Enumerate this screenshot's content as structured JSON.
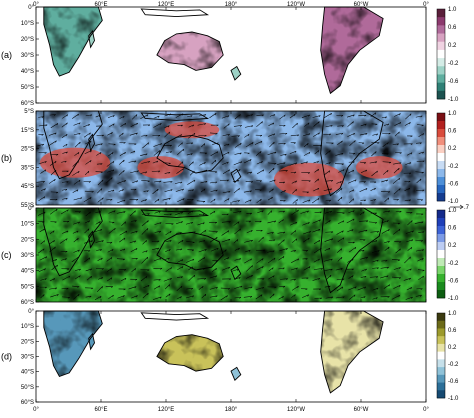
{
  "lon_labels": [
    "0°",
    "60°E",
    "120°E",
    "180°",
    "120°W",
    "60°W",
    "0°"
  ],
  "colors": {
    "brown_to_teal": [
      "#5a1f3a",
      "#8c3a6e",
      "#b06a9a",
      "#d7a2c1",
      "#f0d3e2",
      "#ffffff",
      "#d4ece6",
      "#9dd2c6",
      "#5fae9f",
      "#2f8076",
      "#1c5250"
    ],
    "red_to_blue": [
      "#7a0f14",
      "#b2201f",
      "#d94b3c",
      "#f18f7c",
      "#fbd0c3",
      "#ffffff",
      "#c8dcf4",
      "#8cb8ea",
      "#4d8fd8",
      "#2666bf",
      "#143c8f"
    ],
    "blue_to_green": [
      "#142a8a",
      "#1f3fb8",
      "#3d63d6",
      "#7c9be6",
      "#bdcdf3",
      "#ffffff",
      "#bfeab5",
      "#79d56a",
      "#36b12e",
      "#1a8a1e",
      "#0d5d12"
    ],
    "olive_to_blue": [
      "#3b3a10",
      "#6b6a18",
      "#9c9a2c",
      "#c9c25a",
      "#e8e3a8",
      "#ffffff",
      "#c6e0ea",
      "#8fc2d8",
      "#5798ba",
      "#2c6f98",
      "#164a72"
    ]
  },
  "panels": [
    {
      "label": "(a)",
      "lat_labels": [
        "0°",
        "10°S",
        "20°S",
        "30°S",
        "40°S",
        "50°S",
        "60°S"
      ],
      "colorbar": {
        "ticks": [
          "1.0",
          "0.6",
          "0.2",
          "-0.2",
          "-0.6",
          "-1.0"
        ],
        "palette": "brown_to_teal"
      }
    },
    {
      "label": "(b)",
      "lat_labels": [
        "5°S",
        "15°S",
        "25°S",
        "35°S",
        "45°S",
        "55°S"
      ],
      "colorbar": {
        "ticks": [
          "1.0",
          "0.6",
          "0.2",
          "-0.2",
          "-0.6",
          "-1.0"
        ],
        "palette": "red_to_blue"
      },
      "vector_ref": ".7"
    },
    {
      "label": "(c)",
      "lat_labels": [
        "0°",
        "10°S",
        "20°S",
        "30°S",
        "40°S",
        "50°S",
        "60°S"
      ],
      "colorbar": {
        "ticks": [
          "1.0",
          "0.6",
          "0.2",
          "-0.2",
          "-0.6",
          "-1.0"
        ],
        "palette": "blue_to_green"
      }
    },
    {
      "label": "(d)",
      "lat_labels": [
        "0°",
        "10°S",
        "20°S",
        "30°S",
        "40°S",
        "50°S",
        "60°S"
      ],
      "colorbar": {
        "ticks": [
          "1.0",
          "0.6",
          "0.2",
          "-0.2",
          "-0.6",
          "-1.0"
        ],
        "palette": "olive_to_blue"
      }
    }
  ],
  "chart_data": [
    {
      "type": "heatmap",
      "panel": "(a)",
      "x_range": [
        0,
        360
      ],
      "y_labels": [
        "0°",
        "10°S",
        "20°S",
        "30°S",
        "40°S",
        "50°S",
        "60°S"
      ],
      "color_scale": [
        -1.0,
        1.0
      ],
      "land_only": true
    },
    {
      "type": "heatmap",
      "panel": "(b)",
      "x_range": [
        0,
        360
      ],
      "y_labels": [
        "5°S",
        "15°S",
        "25°S",
        "35°S",
        "45°S",
        "55°S"
      ],
      "color_scale": [
        -1.0,
        1.0
      ],
      "vectors": true
    },
    {
      "type": "heatmap",
      "panel": "(c)",
      "x_range": [
        0,
        360
      ],
      "y_labels": [
        "0°",
        "10°S",
        "20°S",
        "30°S",
        "40°S",
        "50°S",
        "60°S"
      ],
      "color_scale": [
        -1.0,
        1.0
      ],
      "vectors": true
    },
    {
      "type": "heatmap",
      "panel": "(d)",
      "x_range": [
        0,
        360
      ],
      "y_labels": [
        "0°",
        "10°S",
        "20°S",
        "30°S",
        "40°S",
        "50°S",
        "60°S"
      ],
      "color_scale": [
        -1.0,
        1.0
      ],
      "land_only": true
    }
  ]
}
